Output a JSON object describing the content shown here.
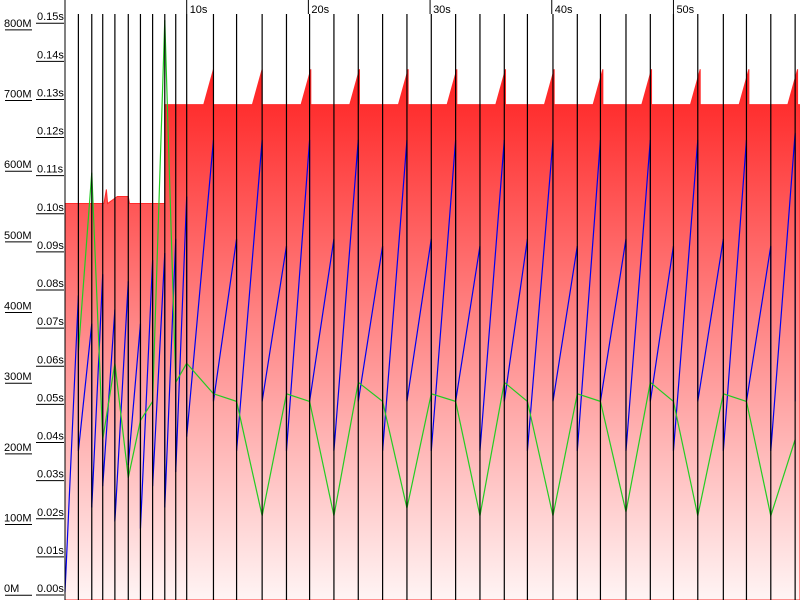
{
  "chart_data": {
    "type": "line",
    "xlim": [
      0,
      60.4
    ],
    "xticks": [
      {
        "value": 10,
        "label": "10s"
      },
      {
        "value": 20,
        "label": "20s"
      },
      {
        "value": 30,
        "label": "30s"
      },
      {
        "value": 40,
        "label": "40s"
      },
      {
        "value": 50,
        "label": "50s"
      }
    ],
    "ylim": [
      -11,
      838
    ],
    "yticks": [
      {
        "value": 0,
        "label": "0M"
      },
      {
        "value": 100,
        "label": "100M"
      },
      {
        "value": 200,
        "label": "200M"
      },
      {
        "value": 300,
        "label": "300M"
      },
      {
        "value": 400,
        "label": "400M"
      },
      {
        "value": 500,
        "label": "500M"
      },
      {
        "value": 600,
        "label": "600M"
      },
      {
        "value": 700,
        "label": "700M"
      },
      {
        "value": 800,
        "label": "800M"
      }
    ],
    "y2lim": [
      -0.0021,
      0.1553
    ],
    "y2ticks": [
      {
        "value": 0,
        "label": "0.00s"
      },
      {
        "value": 0.01,
        "label": "0.01s"
      },
      {
        "value": 0.02,
        "label": "0.02s"
      },
      {
        "value": 0.03,
        "label": "0.03s"
      },
      {
        "value": 0.04,
        "label": "0.04s"
      },
      {
        "value": 0.05,
        "label": "0.05s"
      },
      {
        "value": 0.06,
        "label": "0.06s"
      },
      {
        "value": 0.07,
        "label": "0.07s"
      },
      {
        "value": 0.08,
        "label": "0.08s"
      },
      {
        "value": 0.09,
        "label": "0.09s"
      },
      {
        "value": 0.1,
        "label": "0.10s"
      },
      {
        "value": 0.11,
        "label": "0.11s"
      },
      {
        "value": 0.12,
        "label": "0.12s"
      },
      {
        "value": 0.13,
        "label": "0.13s"
      },
      {
        "value": 0.14,
        "label": "0.14s"
      },
      {
        "value": 0.15,
        "label": "0.15s"
      }
    ],
    "series": [
      {
        "style": "area",
        "color": "#ff2a2a",
        "x": [
          0,
          3.2,
          3.4,
          3.5,
          4.3,
          5.2,
          5.3,
          8.2,
          8.2,
          11.4,
          12.2,
          12.2,
          15.4,
          16.2,
          16.2,
          19.4,
          20.2,
          20.2,
          23.4,
          24.2,
          24.2,
          27.4,
          28.2,
          28.2,
          31.4,
          32.2,
          32.2,
          35.4,
          36.2,
          36.2,
          39.4,
          40.2,
          40.2,
          43.4,
          44.2,
          44.2,
          47.4,
          48.2,
          48.2,
          51.4,
          52.2,
          52.2,
          55.4,
          56.2,
          56.2,
          59.4,
          60.2,
          60.2,
          60.4
        ],
        "values": [
          550,
          550,
          570,
          550,
          560,
          560,
          550,
          550,
          690,
          690,
          740,
          690,
          690,
          740,
          690,
          690,
          740,
          690,
          690,
          740,
          690,
          690,
          740,
          690,
          690,
          740,
          690,
          690,
          740,
          690,
          690,
          740,
          690,
          690,
          740,
          690,
          690,
          740,
          690,
          690,
          740,
          690,
          690,
          740,
          690,
          690,
          740,
          690,
          690
        ]
      },
      {
        "style": "line",
        "color": "#0000ee",
        "x": [
          0,
          1.1,
          1.1,
          2.2,
          2.2,
          3.1,
          3.1,
          4.1,
          4.1,
          5.2,
          5.2,
          6.2,
          6.2,
          7.2,
          7.2,
          8.2,
          8.2,
          9.1,
          9.1,
          10.0,
          10.0,
          12.2,
          12.2,
          14.1,
          14.1,
          16.2,
          16.2,
          18.2,
          18.2,
          20.1,
          20.1,
          22.1,
          22.1,
          24.1,
          24.1,
          26.1,
          26.1,
          28.1,
          28.1,
          30.1,
          30.1,
          32.1,
          32.1,
          34.1,
          34.1,
          36.1,
          36.1,
          38.0,
          38.0,
          40.1,
          40.1,
          42.1,
          42.1,
          44.0,
          44.0,
          46.1,
          46.1,
          48.1,
          48.1,
          50.0,
          50.0,
          52.0,
          52.0,
          54.1,
          54.1,
          56.0,
          56.0,
          58.0,
          58.0,
          60.0,
          60.0
        ],
        "values": [
          0,
          420,
          200,
          380,
          120,
          450,
          150,
          400,
          100,
          440,
          180,
          380,
          90,
          470,
          150,
          480,
          120,
          500,
          170,
          560,
          220,
          640,
          270,
          500,
          200,
          640,
          270,
          490,
          200,
          640,
          270,
          500,
          200,
          640,
          270,
          490,
          200,
          640,
          270,
          500,
          200,
          640,
          270,
          490,
          200,
          640,
          270,
          500,
          200,
          640,
          270,
          490,
          200,
          640,
          270,
          500,
          200,
          640,
          270,
          490,
          200,
          640,
          270,
          500,
          200,
          640,
          270,
          490,
          200,
          650,
          270
        ]
      },
      {
        "style": "line",
        "color": "#22cc22",
        "axis": "y2",
        "x": [
          1.1,
          2.2,
          3.1,
          4.1,
          5.2,
          6.2,
          7.2,
          8.2,
          9.1,
          10.0,
          12.2,
          14.1,
          16.2,
          18.2,
          20.1,
          22.1,
          24.1,
          26.1,
          28.1,
          30.1,
          32.1,
          34.1,
          36.1,
          38.0,
          40.1,
          42.1,
          44.0,
          46.1,
          48.1,
          50.0,
          52.0,
          54.1,
          56.0,
          58.0,
          60.0
        ],
        "values": [
          0.063,
          0.11,
          0.04,
          0.06,
          0.03,
          0.045,
          0.05,
          0.15,
          0.055,
          0.06,
          0.052,
          0.05,
          0.02,
          0.052,
          0.05,
          0.02,
          0.055,
          0.05,
          0.022,
          0.052,
          0.05,
          0.02,
          0.055,
          0.05,
          0.02,
          0.052,
          0.05,
          0.021,
          0.055,
          0.05,
          0.02,
          0.052,
          0.05,
          0.02,
          0.04
        ]
      }
    ],
    "events": {
      "color": "#000000",
      "x": [
        1.1,
        2.2,
        3.1,
        4.1,
        5.2,
        6.2,
        7.2,
        8.2,
        9.1,
        10.0,
        12.2,
        14.1,
        16.2,
        18.2,
        20.1,
        22.1,
        24.1,
        26.1,
        28.1,
        30.1,
        32.1,
        34.1,
        36.1,
        38.0,
        40.1,
        42.1,
        44.0,
        46.1,
        48.1,
        50.0,
        52.0,
        54.1,
        56.0,
        58.0,
        60.0
      ]
    }
  }
}
